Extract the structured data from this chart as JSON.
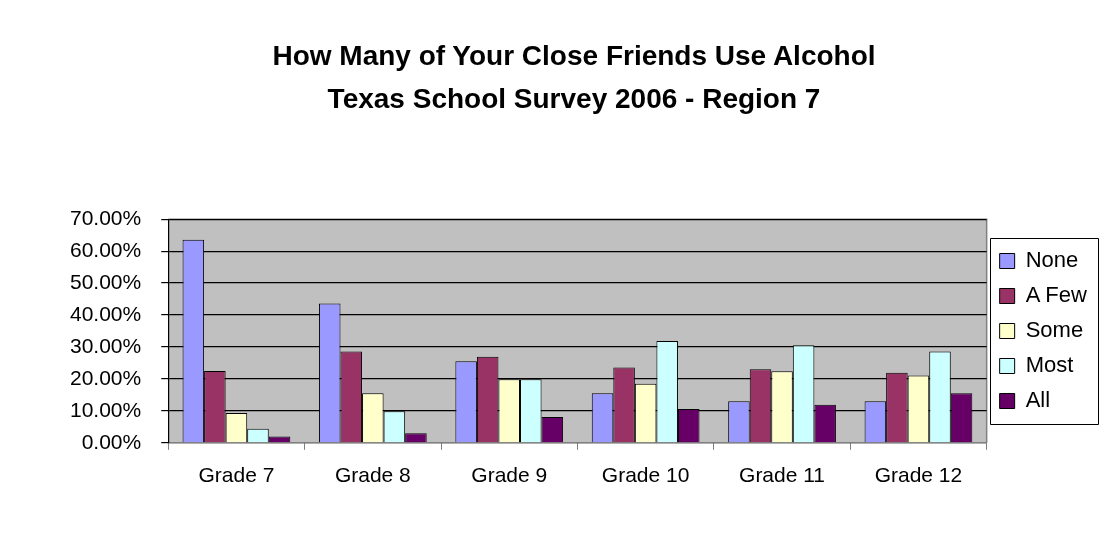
{
  "chart_data": {
    "type": "bar",
    "title": "How Many of Your Close Friends Use Alcohol",
    "subtitle": "Texas School Survey 2006 - Region 7",
    "categories": [
      "Grade 7",
      "Grade 8",
      "Grade 9",
      "Grade 10",
      "Grade 11",
      "Grade 12"
    ],
    "series": [
      {
        "name": "None",
        "color": "#9999ff",
        "values": [
          63.6,
          43.6,
          25.5,
          15.5,
          13.0,
          13.0
        ]
      },
      {
        "name": "A Few",
        "color": "#993366",
        "values": [
          22.5,
          28.6,
          26.9,
          23.6,
          23.0,
          21.9
        ]
      },
      {
        "name": "Some",
        "color": "#ffffcc",
        "values": [
          9.3,
          15.5,
          19.9,
          18.5,
          22.4,
          21.1
        ]
      },
      {
        "name": "Most",
        "color": "#ccffff",
        "values": [
          4.4,
          9.9,
          19.9,
          31.9,
          30.5,
          28.6
        ]
      },
      {
        "name": "All",
        "color": "#660066",
        "values": [
          2.0,
          3.0,
          8.1,
          10.6,
          11.9,
          15.5
        ]
      }
    ],
    "ylim": [
      0,
      70
    ],
    "yticks": [
      {
        "value": 0,
        "label": "0.00%"
      },
      {
        "value": 10,
        "label": "10.00%"
      },
      {
        "value": 20,
        "label": "20.00%"
      },
      {
        "value": 30,
        "label": "30.00%"
      },
      {
        "value": 40,
        "label": "40.00%"
      },
      {
        "value": 50,
        "label": "50.00%"
      },
      {
        "value": 60,
        "label": "60.00%"
      },
      {
        "value": 70,
        "label": "70.00%"
      }
    ],
    "grid": "y",
    "legend": "right"
  }
}
